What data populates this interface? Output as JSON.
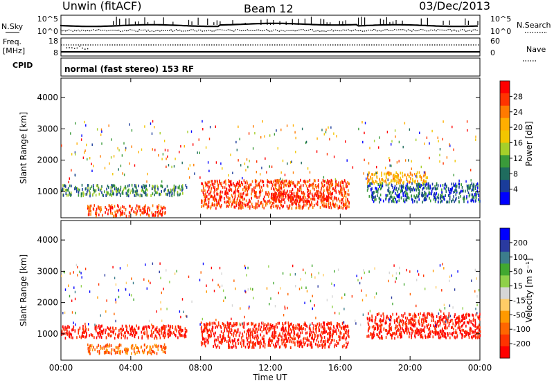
{
  "header": {
    "station": "Unwin (fitACF)",
    "beam": "Beam 12",
    "date": "03/Dec/2013"
  },
  "top_panels": {
    "nsky_label": "N.Sky",
    "nsearch_label": "N.Search",
    "nsky_ticks": [
      "10^5",
      "10^0"
    ],
    "nsearch_ticks": [
      "10^5",
      "10^0"
    ],
    "freq_label": "Freq.",
    "freq_unit": "[MHz]",
    "freq_ticks": [
      "18",
      "8"
    ],
    "nave_label": "Nave",
    "nave_ticks": [
      "60",
      "0"
    ],
    "cpid_label": "CPID",
    "cpid_text": "normal (fast stereo) 153 RF"
  },
  "chart_data": [
    {
      "type": "heatmap",
      "name": "power",
      "ylabel": "Slant Range [km]",
      "xlabel": "",
      "ylim": [
        180,
        4600
      ],
      "xlim": [
        0,
        24
      ],
      "yticks": [
        "4000",
        "3000",
        "2000",
        "1000"
      ],
      "colorbar": {
        "label": "Power [dB]",
        "ticks": [
          "28",
          "24",
          "20",
          "16",
          "12",
          "8",
          "4"
        ],
        "colors": [
          "#ff0000",
          "#ff3300",
          "#ff7a00",
          "#ffae00",
          "#f2c600",
          "#a5cf2a",
          "#3a9a3a",
          "#1f6c5e",
          "#1a3c9a",
          "#0000ff"
        ]
      },
      "regions": [
        {
          "t0": 0.0,
          "t1": 7.2,
          "r0": 900,
          "r1": 1250,
          "dominant": "green-blue"
        },
        {
          "t0": 1.5,
          "t1": 6.0,
          "r0": 250,
          "r1": 600,
          "dominant": "red-orange"
        },
        {
          "t0": 8.0,
          "t1": 16.5,
          "r0": 500,
          "r1": 1400,
          "dominant": "red-orange"
        },
        {
          "t0": 12.0,
          "t1": 15.5,
          "r0": 700,
          "r1": 1000,
          "dominant": "red"
        },
        {
          "t0": 17.5,
          "t1": 24.0,
          "r0": 700,
          "r1": 1300,
          "dominant": "blue-green"
        },
        {
          "t0": 17.5,
          "t1": 21.0,
          "r0": 1300,
          "r1": 1650,
          "dominant": "orange-yellow"
        }
      ]
    },
    {
      "type": "heatmap",
      "name": "velocity",
      "ylabel": "Slant Range [km]",
      "xlabel": "Time UT",
      "ylim": [
        180,
        4600
      ],
      "xlim": [
        0,
        24
      ],
      "yticks": [
        "4000",
        "3000",
        "2000",
        "1000"
      ],
      "xticks": [
        "00:00",
        "04:00",
        "08:00",
        "12:00",
        "16:00",
        "20:00",
        "00:00"
      ],
      "colorbar": {
        "label": "Velocity [m s⁻¹]",
        "ticks": [
          "200",
          "100",
          "50",
          "15",
          "-15",
          "-50",
          "-100",
          "-200"
        ],
        "colors": [
          "#0000ff",
          "#2a3aa0",
          "#3c7d8c",
          "#41a830",
          "#8fd04a",
          "#d6d6d6",
          "#ffcc66",
          "#ff9900",
          "#ff6600",
          "#ff3300",
          "#ff0000"
        ]
      },
      "regions": [
        {
          "t0": 0.0,
          "t1": 7.2,
          "r0": 900,
          "r1": 1300,
          "dominant": "red"
        },
        {
          "t0": 1.5,
          "t1": 6.0,
          "r0": 400,
          "r1": 700,
          "dominant": "orange"
        },
        {
          "t0": 8.0,
          "t1": 16.5,
          "r0": 600,
          "r1": 1400,
          "dominant": "red"
        },
        {
          "t0": 17.5,
          "t1": 24.0,
          "r0": 900,
          "r1": 1700,
          "dominant": "red"
        }
      ]
    }
  ]
}
